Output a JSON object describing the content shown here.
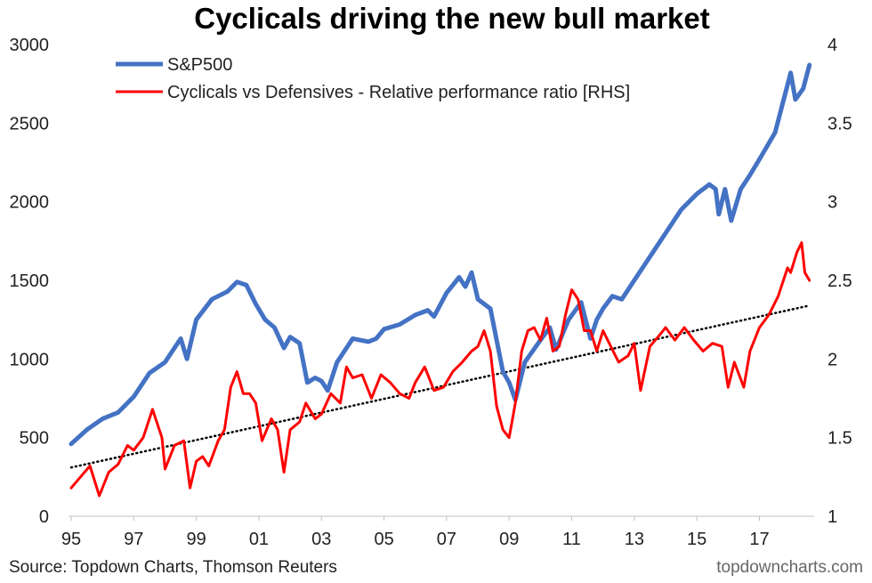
{
  "chart_data": {
    "type": "line",
    "title": "Cyclicals driving the new bull market",
    "x_ticks": [
      "95",
      "97",
      "99",
      "01",
      "03",
      "05",
      "07",
      "09",
      "11",
      "13",
      "15",
      "17"
    ],
    "x_range": [
      1995,
      2018.75
    ],
    "y_left": {
      "ticks": [
        "0",
        "500",
        "1000",
        "1500",
        "2000",
        "2500",
        "3000"
      ],
      "lim": [
        0,
        3000
      ]
    },
    "y_right": {
      "ticks": [
        "1",
        "1.5",
        "2",
        "2.5",
        "3",
        "3.5",
        "4"
      ],
      "lim": [
        1,
        4
      ]
    },
    "legend": {
      "placement": "top-left"
    },
    "series": [
      {
        "name": "S&P500",
        "axis": "left",
        "color": "#4472C4",
        "points": [
          [
            1995.0,
            460
          ],
          [
            1995.5,
            550
          ],
          [
            1996.0,
            620
          ],
          [
            1996.5,
            660
          ],
          [
            1997.0,
            760
          ],
          [
            1997.5,
            910
          ],
          [
            1998.0,
            980
          ],
          [
            1998.5,
            1130
          ],
          [
            1998.7,
            1000
          ],
          [
            1999.0,
            1250
          ],
          [
            1999.5,
            1380
          ],
          [
            2000.0,
            1430
          ],
          [
            2000.3,
            1490
          ],
          [
            2000.6,
            1470
          ],
          [
            2000.9,
            1350
          ],
          [
            2001.2,
            1250
          ],
          [
            2001.5,
            1200
          ],
          [
            2001.8,
            1070
          ],
          [
            2002.0,
            1140
          ],
          [
            2002.3,
            1100
          ],
          [
            2002.55,
            850
          ],
          [
            2002.8,
            880
          ],
          [
            2003.0,
            860
          ],
          [
            2003.2,
            800
          ],
          [
            2003.5,
            980
          ],
          [
            2004.0,
            1130
          ],
          [
            2004.5,
            1110
          ],
          [
            2004.75,
            1130
          ],
          [
            2005.0,
            1190
          ],
          [
            2005.5,
            1220
          ],
          [
            2006.0,
            1280
          ],
          [
            2006.4,
            1310
          ],
          [
            2006.6,
            1270
          ],
          [
            2007.0,
            1420
          ],
          [
            2007.4,
            1520
          ],
          [
            2007.6,
            1460
          ],
          [
            2007.8,
            1550
          ],
          [
            2008.0,
            1380
          ],
          [
            2008.4,
            1320
          ],
          [
            2008.8,
            920
          ],
          [
            2009.0,
            850
          ],
          [
            2009.2,
            740
          ],
          [
            2009.5,
            980
          ],
          [
            2010.0,
            1120
          ],
          [
            2010.3,
            1200
          ],
          [
            2010.5,
            1060
          ],
          [
            2010.9,
            1250
          ],
          [
            2011.3,
            1360
          ],
          [
            2011.6,
            1130
          ],
          [
            2011.8,
            1250
          ],
          [
            2012.0,
            1320
          ],
          [
            2012.3,
            1400
          ],
          [
            2012.6,
            1380
          ],
          [
            2013.0,
            1500
          ],
          [
            2013.5,
            1650
          ],
          [
            2014.0,
            1800
          ],
          [
            2014.5,
            1950
          ],
          [
            2015.0,
            2050
          ],
          [
            2015.4,
            2110
          ],
          [
            2015.6,
            2080
          ],
          [
            2015.7,
            1920
          ],
          [
            2015.9,
            2080
          ],
          [
            2016.1,
            1880
          ],
          [
            2016.4,
            2080
          ],
          [
            2016.7,
            2170
          ],
          [
            2017.0,
            2270
          ],
          [
            2017.5,
            2440
          ],
          [
            2018.0,
            2820
          ],
          [
            2018.15,
            2650
          ],
          [
            2018.4,
            2720
          ],
          [
            2018.6,
            2870
          ]
        ]
      },
      {
        "name": "Cyclicals vs Defensives - Relative performance ratio [RHS]",
        "axis": "right",
        "color": "#FF0000",
        "points": [
          [
            1995.0,
            1.18
          ],
          [
            1995.3,
            1.25
          ],
          [
            1995.6,
            1.32
          ],
          [
            1995.9,
            1.13
          ],
          [
            1996.2,
            1.28
          ],
          [
            1996.5,
            1.33
          ],
          [
            1996.8,
            1.45
          ],
          [
            1997.0,
            1.42
          ],
          [
            1997.3,
            1.5
          ],
          [
            1997.6,
            1.68
          ],
          [
            1997.9,
            1.5
          ],
          [
            1998.0,
            1.3
          ],
          [
            1998.3,
            1.45
          ],
          [
            1998.6,
            1.48
          ],
          [
            1998.8,
            1.18
          ],
          [
            1999.0,
            1.35
          ],
          [
            1999.2,
            1.38
          ],
          [
            1999.4,
            1.32
          ],
          [
            1999.7,
            1.48
          ],
          [
            1999.9,
            1.55
          ],
          [
            2000.1,
            1.82
          ],
          [
            2000.3,
            1.92
          ],
          [
            2000.5,
            1.78
          ],
          [
            2000.7,
            1.78
          ],
          [
            2000.9,
            1.72
          ],
          [
            2001.1,
            1.48
          ],
          [
            2001.4,
            1.62
          ],
          [
            2001.6,
            1.55
          ],
          [
            2001.8,
            1.28
          ],
          [
            2002.0,
            1.55
          ],
          [
            2002.3,
            1.6
          ],
          [
            2002.5,
            1.72
          ],
          [
            2002.8,
            1.62
          ],
          [
            2003.0,
            1.65
          ],
          [
            2003.3,
            1.78
          ],
          [
            2003.6,
            1.72
          ],
          [
            2003.8,
            1.95
          ],
          [
            2004.0,
            1.88
          ],
          [
            2004.3,
            1.9
          ],
          [
            2004.6,
            1.75
          ],
          [
            2004.9,
            1.9
          ],
          [
            2005.2,
            1.85
          ],
          [
            2005.5,
            1.78
          ],
          [
            2005.8,
            1.75
          ],
          [
            2006.0,
            1.85
          ],
          [
            2006.3,
            1.95
          ],
          [
            2006.6,
            1.8
          ],
          [
            2006.9,
            1.82
          ],
          [
            2007.2,
            1.92
          ],
          [
            2007.5,
            1.98
          ],
          [
            2007.8,
            2.05
          ],
          [
            2008.0,
            2.08
          ],
          [
            2008.2,
            2.18
          ],
          [
            2008.4,
            2.05
          ],
          [
            2008.6,
            1.7
          ],
          [
            2008.8,
            1.55
          ],
          [
            2009.0,
            1.5
          ],
          [
            2009.2,
            1.72
          ],
          [
            2009.4,
            2.05
          ],
          [
            2009.6,
            2.18
          ],
          [
            2009.8,
            2.2
          ],
          [
            2010.0,
            2.12
          ],
          [
            2010.2,
            2.26
          ],
          [
            2010.4,
            2.05
          ],
          [
            2010.6,
            2.08
          ],
          [
            2010.8,
            2.28
          ],
          [
            2011.0,
            2.44
          ],
          [
            2011.2,
            2.38
          ],
          [
            2011.4,
            2.18
          ],
          [
            2011.6,
            2.18
          ],
          [
            2011.8,
            2.05
          ],
          [
            2012.0,
            2.18
          ],
          [
            2012.2,
            2.1
          ],
          [
            2012.5,
            1.98
          ],
          [
            2012.8,
            2.02
          ],
          [
            2013.0,
            2.1
          ],
          [
            2013.2,
            1.8
          ],
          [
            2013.5,
            2.08
          ],
          [
            2013.8,
            2.15
          ],
          [
            2014.0,
            2.2
          ],
          [
            2014.3,
            2.12
          ],
          [
            2014.6,
            2.2
          ],
          [
            2014.9,
            2.12
          ],
          [
            2015.2,
            2.05
          ],
          [
            2015.5,
            2.1
          ],
          [
            2015.8,
            2.08
          ],
          [
            2016.0,
            1.82
          ],
          [
            2016.2,
            1.98
          ],
          [
            2016.5,
            1.82
          ],
          [
            2016.7,
            2.05
          ],
          [
            2017.0,
            2.2
          ],
          [
            2017.3,
            2.28
          ],
          [
            2017.6,
            2.4
          ],
          [
            2017.9,
            2.58
          ],
          [
            2018.0,
            2.55
          ],
          [
            2018.2,
            2.68
          ],
          [
            2018.35,
            2.74
          ],
          [
            2018.45,
            2.55
          ],
          [
            2018.6,
            2.5
          ]
        ]
      },
      {
        "name": "Trend",
        "axis": "right",
        "color": "#000000",
        "style": "dotted",
        "points": [
          [
            1995.0,
            1.31
          ],
          [
            2018.6,
            2.34
          ]
        ]
      }
    ],
    "source": "Source: Topdown Charts, Thomson Reuters",
    "brand": "topdowncharts.com"
  }
}
